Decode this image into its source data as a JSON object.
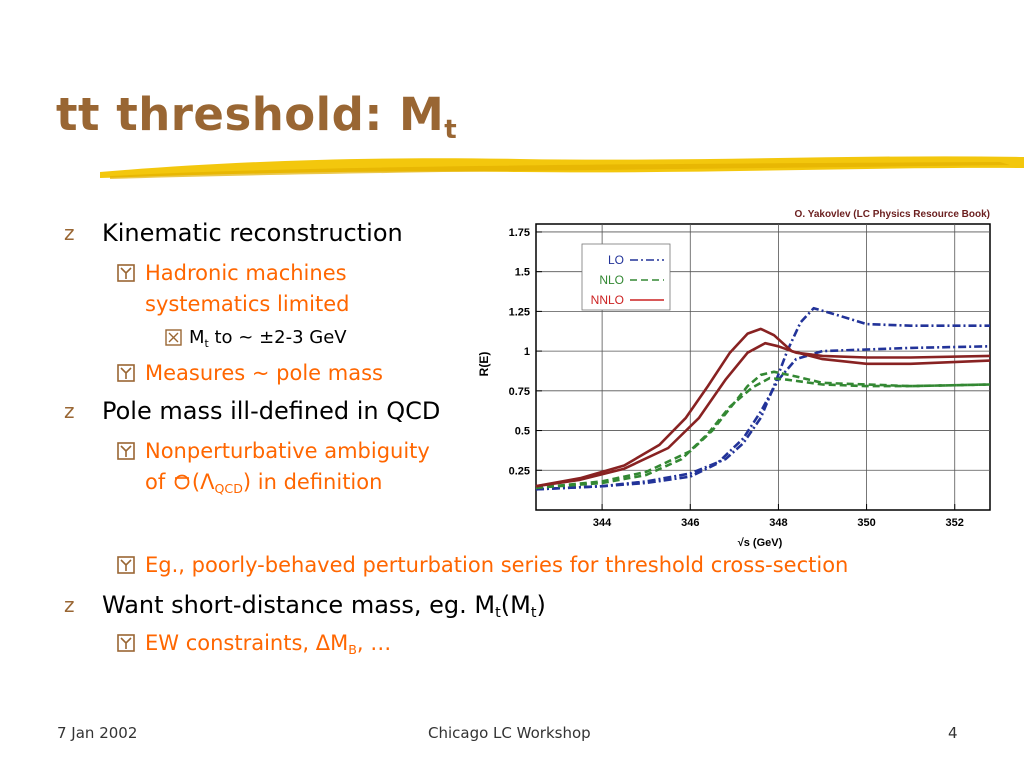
{
  "slide": {
    "title_main": "tt threshold: M",
    "title_sub": "t",
    "bullets": {
      "b1": "Kinematic reconstruction",
      "b1_1_line1": "Hadronic machines",
      "b1_1_line2": "systematics limited",
      "b1_1_1_pre": "M",
      "b1_1_1_sub": "t",
      "b1_1_1_post": " to ~ ±2-3 GeV",
      "b1_2": "Measures ~ pole mass",
      "b2": "Pole mass ill-defined in QCD",
      "b2_1_line1": "Nonperturbative ambiguity",
      "b2_1_line2_pre": "of ",
      "b2_1_line2_sym": "(Λ",
      "b2_1_line2_sub": "QCD",
      "b2_1_line2_post": ") in definition",
      "b2_2": "Eg., poorly-behaved perturbation series for threshold cross-section",
      "b3_pre": "Want short-distance mass, eg. M",
      "b3_mid_sub": "t",
      "b3_mid": "(M",
      "b3_post_sub": "t",
      "b3_post": ")",
      "b3_1_pre": "EW constraints, ΔM",
      "b3_1_sub": "B",
      "b3_1_post": ", …"
    },
    "bullet_glyph": "z",
    "footer": {
      "date": "7 Jan 2002",
      "center": "Chicago LC Workshop",
      "page": "4"
    }
  },
  "colors": {
    "title": "#996633",
    "accent_orange": "#ff6600",
    "underline_yellow": "#f2c400"
  },
  "chart_data": {
    "type": "line",
    "credit": "O. Yakovlev (LC Physics Resource Book)",
    "xlabel": "√s (GeV)",
    "ylabel": "R(E)",
    "xlim": [
      342.5,
      352.8
    ],
    "ylim": [
      0,
      1.8
    ],
    "x_ticks": [
      344,
      346,
      348,
      350,
      352
    ],
    "y_ticks": [
      0.25,
      0.5,
      0.75,
      1,
      1.25,
      1.5,
      1.75
    ],
    "y_tick_labels": [
      "0.25",
      "0.5",
      "0.75",
      "1",
      "1.25",
      "1.5",
      "1.75"
    ],
    "legend": [
      "LO",
      "NLO",
      "NNLO"
    ],
    "legend_position": "top-left",
    "series": [
      {
        "name": "LO",
        "color": "#223399",
        "dash": "8,3,2,3",
        "x": [
          342.5,
          344,
          345,
          346,
          346.8,
          347.2,
          347.6,
          347.9,
          348.2,
          348.5,
          348.8,
          349.3,
          350,
          351,
          352.8
        ],
        "y": [
          0.13,
          0.15,
          0.18,
          0.23,
          0.32,
          0.42,
          0.58,
          0.78,
          1.0,
          1.18,
          1.27,
          1.23,
          1.17,
          1.16,
          1.16
        ]
      },
      {
        "name": "LO",
        "color": "#223399",
        "dash": "8,3,2,3",
        "x": [
          342.5,
          344,
          345,
          346,
          346.6,
          347.2,
          347.6,
          348,
          348.4,
          349,
          350,
          351,
          352.8
        ],
        "y": [
          0.13,
          0.15,
          0.17,
          0.21,
          0.29,
          0.45,
          0.62,
          0.82,
          0.95,
          1.0,
          1.01,
          1.02,
          1.03
        ]
      },
      {
        "name": "NLO",
        "color": "#338833",
        "dash": "7,4",
        "x": [
          342.5,
          344,
          345,
          346,
          346.5,
          346.9,
          347.3,
          347.6,
          347.9,
          348.4,
          349,
          350,
          351,
          352.8
        ],
        "y": [
          0.14,
          0.18,
          0.24,
          0.37,
          0.5,
          0.64,
          0.78,
          0.85,
          0.87,
          0.84,
          0.8,
          0.79,
          0.78,
          0.79
        ]
      },
      {
        "name": "NLO",
        "color": "#338833",
        "dash": "7,4",
        "x": [
          342.5,
          344,
          345,
          345.8,
          346.4,
          346.9,
          347.4,
          347.8,
          348.2,
          349,
          350,
          351,
          352.8
        ],
        "y": [
          0.14,
          0.17,
          0.22,
          0.32,
          0.48,
          0.65,
          0.77,
          0.83,
          0.82,
          0.79,
          0.78,
          0.78,
          0.79
        ]
      },
      {
        "name": "NNLO",
        "color": "#882222",
        "dash": "",
        "x": [
          342.5,
          343.5,
          344.5,
          345.3,
          345.9,
          346.4,
          346.9,
          347.3,
          347.6,
          347.9,
          348.3,
          349,
          350,
          351,
          352.8
        ],
        "y": [
          0.15,
          0.2,
          0.28,
          0.41,
          0.58,
          0.78,
          0.99,
          1.11,
          1.14,
          1.1,
          1.0,
          0.95,
          0.92,
          0.92,
          0.94
        ]
      },
      {
        "name": "NNLO",
        "color": "#882222",
        "dash": "",
        "x": [
          342.5,
          343.5,
          344.5,
          345.5,
          346.2,
          346.8,
          347.3,
          347.7,
          348,
          348.4,
          349,
          350,
          351,
          352.8
        ],
        "y": [
          0.15,
          0.19,
          0.26,
          0.39,
          0.58,
          0.82,
          0.99,
          1.05,
          1.03,
          0.99,
          0.97,
          0.96,
          0.96,
          0.97
        ]
      }
    ]
  }
}
